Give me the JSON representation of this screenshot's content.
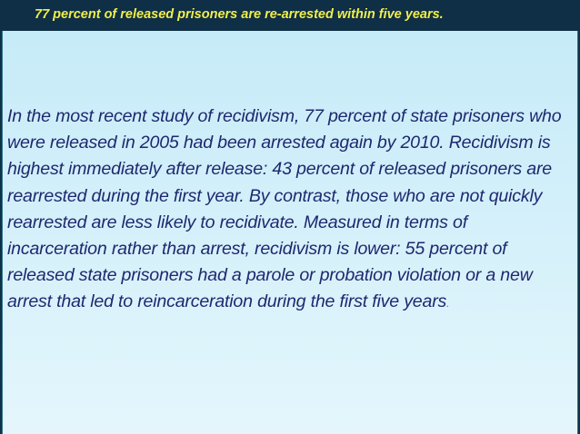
{
  "header": {
    "title": "77 percent of released prisoners are re-arrested within five years."
  },
  "body": {
    "text": "In the most recent study of recidivism, 77 percent of state prisoners who were released in 2005 had been arrested again by 2010. Recidivism is highest immediately after release: 43 percent of released prisoners are rearrested during the first year. By contrast, those who are not quickly rearrested are less likely to recidivate. Measured in terms of incarceration rather than arrest, recidivism is lower: 55 percent of released state prisoners had a parole or probation violation or a new arrest that led to reincarceration during the first five years",
    "end": "."
  }
}
